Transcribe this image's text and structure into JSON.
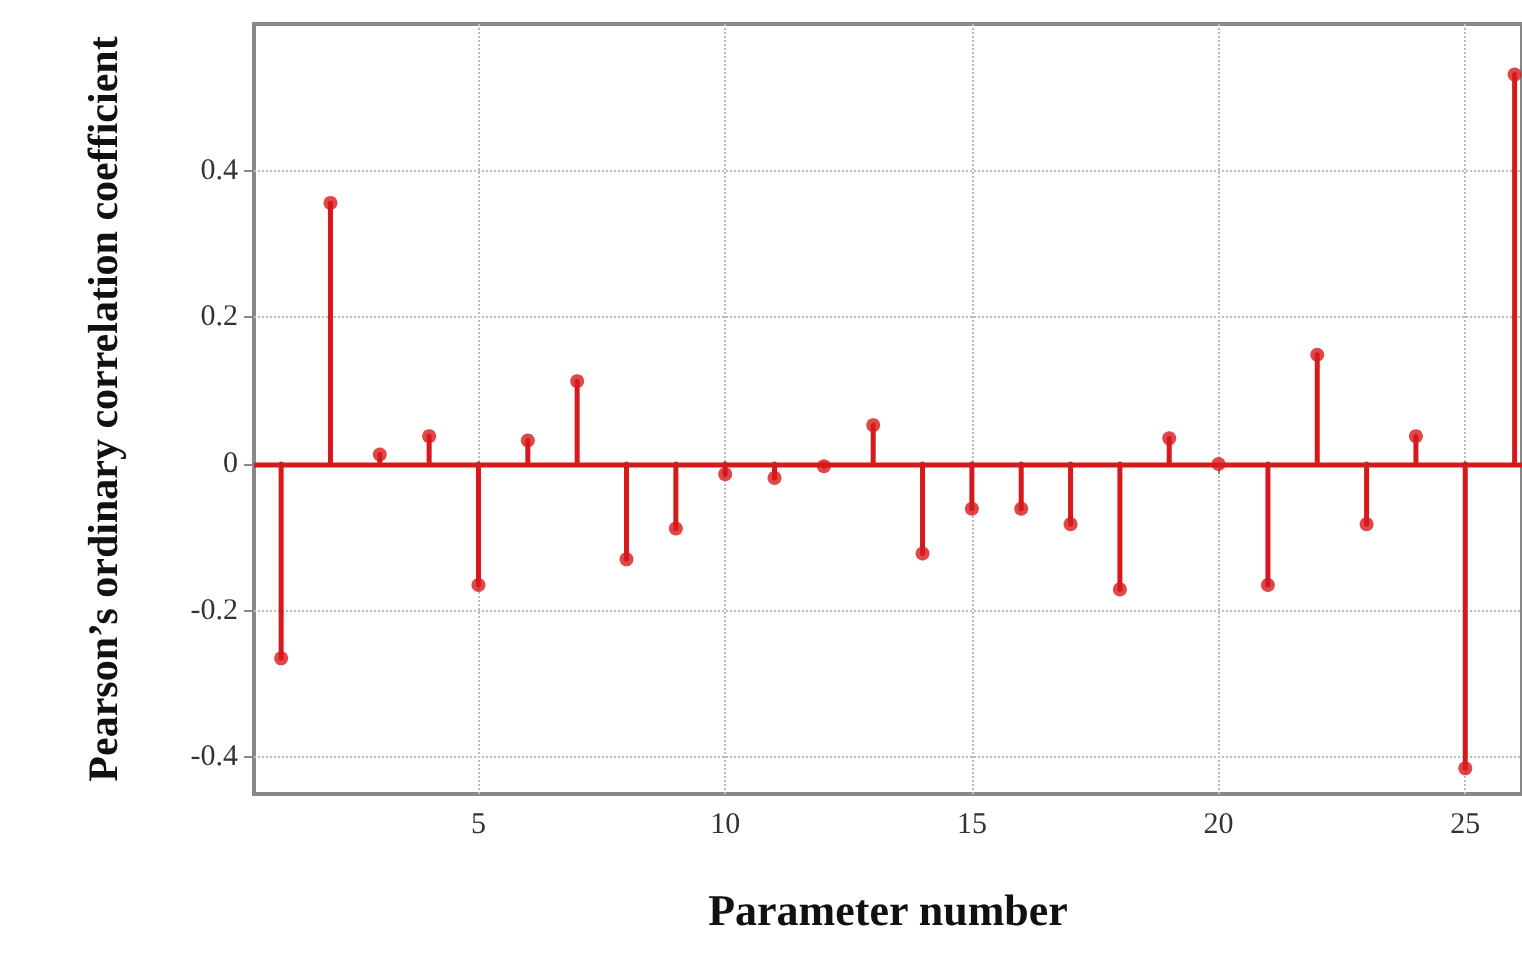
{
  "chart_data": {
    "type": "lollipop",
    "xlabel": "Parameter number",
    "ylabel": "Pearson’s ordinary correlation coefficient",
    "x": [
      1,
      2,
      3,
      4,
      5,
      6,
      7,
      8,
      9,
      10,
      11,
      12,
      13,
      14,
      15,
      16,
      17,
      18,
      19,
      20,
      21,
      22,
      23,
      24,
      25,
      26
    ],
    "series": [
      {
        "color": "#d7191c",
        "values": [
          -0.265,
          0.356,
          0.013,
          0.038,
          -0.165,
          0.032,
          0.113,
          -0.13,
          -0.088,
          -0.014,
          -0.019,
          -0.003,
          0.053,
          -0.122,
          -0.061,
          -0.061,
          -0.082,
          -0.171,
          0.035,
          0,
          -0.165,
          0.149,
          -0.082,
          0.038,
          -0.415,
          0.531
        ]
      }
    ],
    "xlim": [
      0.45,
      26.15
    ],
    "xticks": [
      5,
      10,
      15,
      20,
      25
    ],
    "ylim": [
      -0.45,
      0.6
    ],
    "yticks": [
      {
        "value": -0.4,
        "label": "-0.4"
      },
      {
        "value": -0.2,
        "label": "-0.2"
      },
      0,
      0.2,
      0.4
    ],
    "ref_lines": [
      {
        "axis": "y",
        "value": 0,
        "color": "#d7191c"
      }
    ],
    "grid": true,
    "marker": "circle",
    "line_style": "solid"
  }
}
